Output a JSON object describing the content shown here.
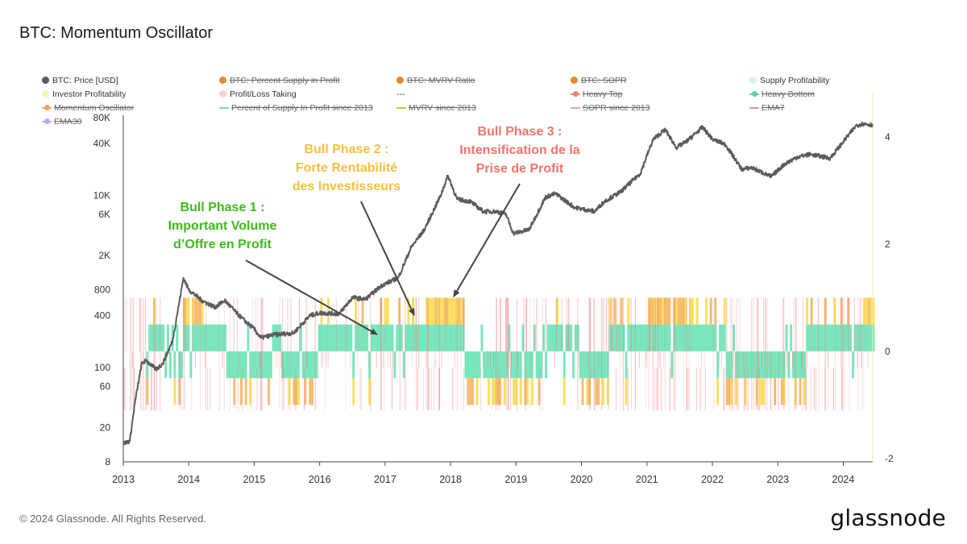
{
  "title": "BTC: Momentum Oscillator",
  "legend": [
    {
      "label": "BTC: Price [USD]",
      "color": "#5b5b5b",
      "disabled": false,
      "style": "dot"
    },
    {
      "label": "BTC: Percent Supply in Profit",
      "color": "#e8892a",
      "disabled": true,
      "style": "dot"
    },
    {
      "label": "BTC: MVRV Ratio",
      "color": "#e8892a",
      "disabled": true,
      "style": "dot"
    },
    {
      "label": "BTC: SOPR",
      "color": "#e8892a",
      "disabled": true,
      "style": "dot"
    },
    {
      "label": "Supply Profitability",
      "color": "#d7f5e4",
      "disabled": false,
      "style": "dot"
    },
    {
      "label": "Investor Profitability",
      "color": "#fbf1b8",
      "disabled": false,
      "style": "dot"
    },
    {
      "label": "Profit/Loss Taking",
      "color": "#f9d3d3",
      "disabled": false,
      "style": "dot"
    },
    {
      "label": "---",
      "color": "",
      "disabled": false,
      "style": "none"
    },
    {
      "label": "Heavy Top",
      "color": "#f08080",
      "disabled": true,
      "style": "lineDot"
    },
    {
      "label": "Heavy Bottom",
      "color": "#5fd3a4",
      "disabled": true,
      "style": "lineDot"
    },
    {
      "label": "Momentum Oscillator",
      "color": "#f3a35a",
      "disabled": true,
      "style": "lineDot"
    },
    {
      "label": "Percent of Supply In Profit since 2013",
      "color": "#7fd3b6",
      "disabled": true,
      "style": "line"
    },
    {
      "label": "MVRV since 2013",
      "color": "#c9c43a",
      "disabled": true,
      "style": "line"
    },
    {
      "label": "SOPR since 2013",
      "color": "#f0a0a0",
      "disabled": true,
      "style": "line"
    },
    {
      "label": "EMA7",
      "color": "#b59be0",
      "disabled": true,
      "style": "line"
    },
    {
      "label": "EMA30",
      "color": "#c7a4e8",
      "disabled": true,
      "style": "lineDot"
    }
  ],
  "annotations": [
    {
      "lines": [
        "Bull Phase 1 :",
        "Important Volume",
        "d’Offre en Profit"
      ],
      "color": "#3dbb1a"
    },
    {
      "lines": [
        "Bull Phase 2 :",
        "Forte Rentabilité",
        "des Investisseurs"
      ],
      "color": "#f4c042"
    },
    {
      "lines": [
        "Bull Phase 3 :",
        "Intensification de la",
        "Prise de Profit"
      ],
      "color": "#f2736c"
    }
  ],
  "footer": {
    "copyright": "© 2024 Glassnode. All Rights Reserved.",
    "brand": "glassnode"
  },
  "chart_data": {
    "type": "line",
    "title": "BTC: Momentum Oscillator",
    "x_range": [
      2013.0,
      2024.45
    ],
    "x_ticks": [
      "2013",
      "2014",
      "2015",
      "2016",
      "2017",
      "2018",
      "2019",
      "2020",
      "2021",
      "2022",
      "2023",
      "2024"
    ],
    "y_left": {
      "scale": "log",
      "range": [
        8,
        80000
      ],
      "tick_labels": [
        "80K",
        "40K",
        "10K",
        "6K",
        "2K",
        "800",
        "400",
        "100",
        "60",
        "20",
        "8"
      ],
      "tick_values": [
        80000,
        40000,
        10000,
        6000,
        2000,
        800,
        400,
        100,
        60,
        20,
        8
      ]
    },
    "y_right": {
      "scale": "linear",
      "range": [
        -2,
        4.6
      ],
      "tick_labels": [
        "4",
        "2",
        "0",
        "-2"
      ],
      "tick_values": [
        4,
        2,
        0,
        -2
      ]
    },
    "series": [
      {
        "name": "BTC: Price [USD]",
        "color": "#5b5b5b",
        "x": [
          2013.0,
          2013.1,
          2013.18,
          2013.28,
          2013.35,
          2013.5,
          2013.6,
          2013.75,
          2013.92,
          2014.0,
          2014.2,
          2014.4,
          2014.55,
          2014.8,
          2015.0,
          2015.1,
          2015.3,
          2015.6,
          2015.85,
          2016.0,
          2016.3,
          2016.5,
          2016.7,
          2016.95,
          2017.2,
          2017.4,
          2017.6,
          2017.85,
          2017.96,
          2018.1,
          2018.3,
          2018.5,
          2018.7,
          2018.85,
          2018.96,
          2019.2,
          2019.45,
          2019.6,
          2019.9,
          2020.2,
          2020.35,
          2020.6,
          2020.9,
          2021.0,
          2021.1,
          2021.28,
          2021.45,
          2021.6,
          2021.85,
          2022.0,
          2022.2,
          2022.45,
          2022.6,
          2022.9,
          2023.1,
          2023.3,
          2023.5,
          2023.8,
          2024.0,
          2024.2,
          2024.3,
          2024.45
        ],
        "y": [
          13,
          14,
          40,
          110,
          120,
          95,
          110,
          200,
          1100,
          800,
          600,
          500,
          600,
          380,
          280,
          220,
          240,
          250,
          400,
          430,
          420,
          650,
          620,
          900,
          1100,
          2500,
          4000,
          10000,
          17000,
          9000,
          8500,
          6500,
          6500,
          6000,
          3600,
          4000,
          9500,
          10500,
          7200,
          6500,
          8500,
          11000,
          18000,
          29000,
          45000,
          58000,
          36000,
          42000,
          62000,
          45000,
          39000,
          20000,
          21000,
          16500,
          23000,
          28000,
          30000,
          27000,
          42000,
          65000,
          68000,
          66000
        ]
      },
      {
        "name": "Momentum Oscillator",
        "color": "#f3a35a",
        "x": [
          2013.35,
          2013.6,
          2013.9,
          2014.2,
          2014.55,
          2015.0,
          2015.6,
          2016.0,
          2016.5,
          2017.0,
          2017.35,
          2017.6,
          2017.95,
          2018.2,
          2018.6,
          2019.0,
          2019.4,
          2019.7,
          2020.0,
          2020.4,
          2020.8,
          2021.0,
          2021.3,
          2021.6,
          2021.9,
          2022.2,
          2022.6,
          2023.0,
          2023.4,
          2023.8,
          2024.0,
          2024.3
        ],
        "y": [
          0.5,
          -0.5,
          1,
          0.5,
          -0.5,
          -0.5,
          -0.5,
          0.5,
          0.5,
          0.5,
          0.5,
          1,
          1,
          -0.5,
          -0.5,
          -0.5,
          0.5,
          0.5,
          -0.5,
          0.5,
          0.5,
          1,
          1,
          0.5,
          0.5,
          -0.5,
          -0.5,
          -0.5,
          0.5,
          0.5,
          0.5,
          1
        ]
      }
    ],
    "annotations": [
      "Bull Phase 1 : Important Volume d’Offre en Profit",
      "Bull Phase 2 : Forte Rentabilité des Investisseurs",
      "Bull Phase 3 : Intensification de la Prise de Profit"
    ]
  }
}
